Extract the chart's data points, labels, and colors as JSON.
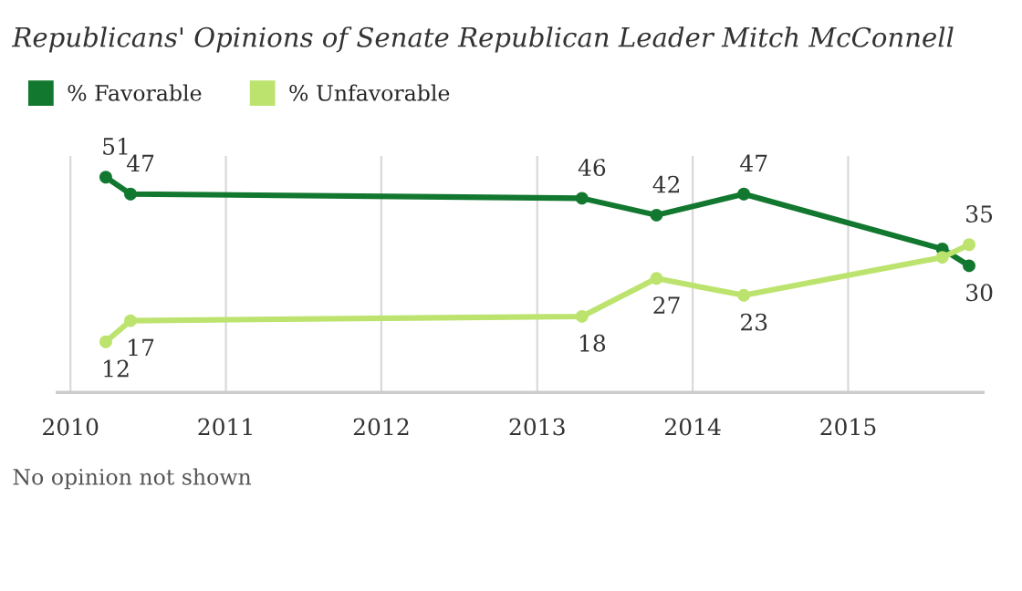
{
  "chart_data": {
    "type": "line",
    "title": "Republicans' Opinions of Senate Republican Leader Mitch McConnell",
    "x": [
      "2010-03-25",
      "2010-05-22",
      "2013-04-16",
      "2013-10-08",
      "2014-05-01",
      "2015-08-10",
      "2015-10-12"
    ],
    "series": [
      {
        "name": "% Favorable",
        "color": "#13782f",
        "values": [
          51,
          47,
          46,
          42,
          47,
          34,
          30
        ],
        "value_labels": [
          "51",
          "47",
          "46",
          "42",
          "47",
          null,
          "30"
        ]
      },
      {
        "name": "% Unfavorable",
        "color": "#bde36f",
        "values": [
          12,
          17,
          18,
          27,
          23,
          32,
          35
        ],
        "value_labels": [
          "12",
          "17",
          "18",
          "27",
          "23",
          null,
          "35"
        ]
      }
    ],
    "xlim": [
      "2009-12-01",
      "2015-11-14"
    ],
    "xticks": [
      {
        "value": "2010-01-01",
        "label": "2010"
      },
      {
        "value": "2011-01-01",
        "label": "2011"
      },
      {
        "value": "2012-01-01",
        "label": "2012"
      },
      {
        "value": "2013-01-01",
        "label": "2013"
      },
      {
        "value": "2014-01-01",
        "label": "2014"
      },
      {
        "value": "2015-01-01",
        "label": "2015"
      }
    ],
    "ylim": [
      0,
      56
    ],
    "tick_labels": "x",
    "grid": "x",
    "legend": "top left",
    "marker": "circle",
    "line_style": "solid",
    "annotations": [
      "No opinion not shown"
    ]
  }
}
